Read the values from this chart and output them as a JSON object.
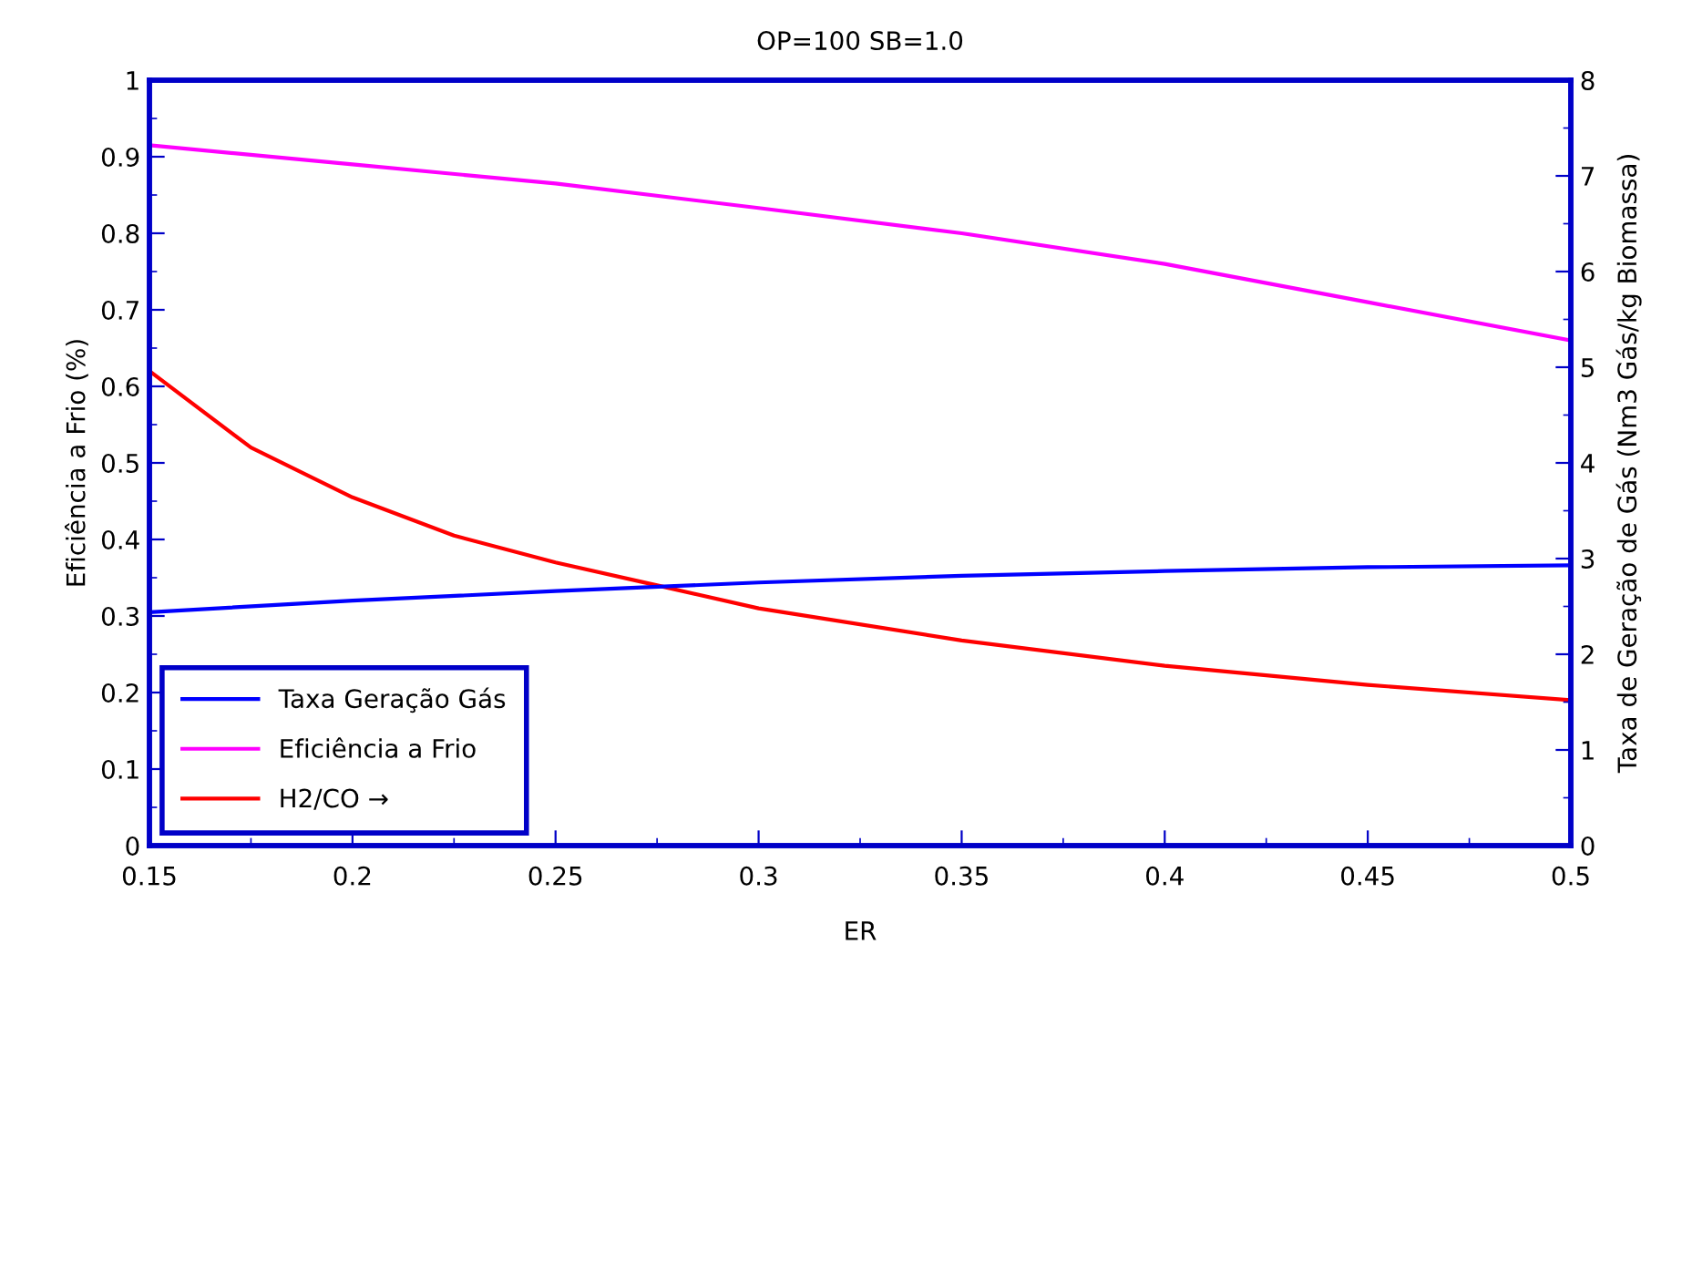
{
  "chart_data": {
    "type": "line",
    "title": "OP=100 SB=1.0",
    "xlabel": "ER",
    "ylabel": "Eficiência a Frio (%)",
    "y2label": "Taxa de Geração de Gás (Nm3 Gás/kg Biomassa)",
    "xlim": [
      0.15,
      0.5
    ],
    "xticks": [
      0.15,
      0.2,
      0.25,
      0.3,
      0.35,
      0.4,
      0.45,
      0.5
    ],
    "ylim": [
      0,
      1
    ],
    "yticks": [
      0,
      0.1,
      0.2,
      0.3,
      0.4,
      0.5,
      0.6,
      0.7,
      0.8,
      0.9,
      1
    ],
    "y2lim": [
      0,
      8
    ],
    "y2ticks": [
      0,
      1,
      2,
      3,
      4,
      5,
      6,
      7,
      8
    ],
    "legend": "bottom left",
    "grid": false,
    "marker": "none",
    "line_style": "solid",
    "series": [
      {
        "name": "Taxa Geração Gás",
        "color": "#0000ff",
        "axis": "y2",
        "x": [
          0.15,
          0.2,
          0.25,
          0.3,
          0.35,
          0.4,
          0.45,
          0.5
        ],
        "values": [
          2.44,
          2.56,
          2.66,
          2.75,
          2.82,
          2.87,
          2.91,
          2.93
        ]
      },
      {
        "name": "Eficiência a Frio",
        "color": "#ff00ff",
        "x": [
          0.15,
          0.2,
          0.25,
          0.3,
          0.35,
          0.4,
          0.45,
          0.5
        ],
        "values": [
          0.915,
          0.89,
          0.865,
          0.833,
          0.8,
          0.76,
          0.71,
          0.66
        ]
      },
      {
        "name": "H2/CO →",
        "color": "#ff0000",
        "x": [
          0.15,
          0.175,
          0.2,
          0.225,
          0.25,
          0.275,
          0.3,
          0.35,
          0.4,
          0.45,
          0.5
        ],
        "values": [
          0.62,
          0.52,
          0.455,
          0.405,
          0.37,
          0.34,
          0.31,
          0.268,
          0.235,
          0.21,
          0.19
        ]
      }
    ]
  }
}
